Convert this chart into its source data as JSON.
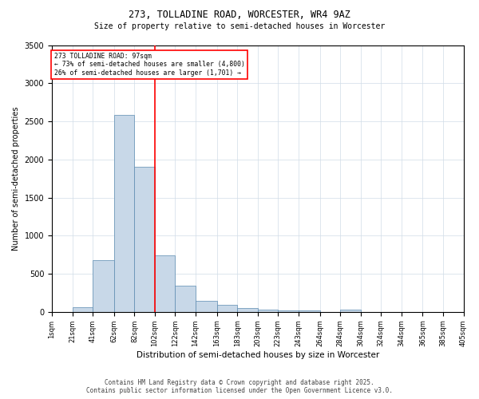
{
  "title1": "273, TOLLADINE ROAD, WORCESTER, WR4 9AZ",
  "title2": "Size of property relative to semi-detached houses in Worcester",
  "xlabel": "Distribution of semi-detached houses by size in Worcester",
  "ylabel": "Number of semi-detached properties",
  "bin_edges": [
    1,
    21,
    41,
    62,
    82,
    102,
    122,
    142,
    163,
    183,
    203,
    223,
    243,
    264,
    284,
    304,
    324,
    344,
    365,
    385,
    405
  ],
  "bar_heights": [
    0,
    60,
    680,
    2580,
    1900,
    740,
    340,
    150,
    90,
    55,
    35,
    20,
    20,
    0,
    30,
    0,
    0,
    0,
    0,
    0
  ],
  "bar_color": "#c8d8e8",
  "bar_edge_color": "#5a8ab0",
  "vline_x": 102,
  "vline_color": "red",
  "ylim": [
    0,
    3500
  ],
  "yticks": [
    0,
    500,
    1000,
    1500,
    2000,
    2500,
    3000,
    3500
  ],
  "xtick_labels": [
    "1sqm",
    "21sqm",
    "41sqm",
    "62sqm",
    "82sqm",
    "102sqm",
    "122sqm",
    "142sqm",
    "163sqm",
    "183sqm",
    "203sqm",
    "223sqm",
    "243sqm",
    "264sqm",
    "284sqm",
    "304sqm",
    "324sqm",
    "344sqm",
    "365sqm",
    "385sqm",
    "405sqm"
  ],
  "annotation_title": "273 TOLLADINE ROAD: 97sqm",
  "annotation_line1": "← 73% of semi-detached houses are smaller (4,800)",
  "annotation_line2": "26% of semi-detached houses are larger (1,701) →",
  "annotation_box_color": "red",
  "annotation_fill": "white",
  "footnote1": "Contains HM Land Registry data © Crown copyright and database right 2025.",
  "footnote2": "Contains public sector information licensed under the Open Government Licence v3.0.",
  "background_color": "white",
  "grid_color": "#d0dce8"
}
